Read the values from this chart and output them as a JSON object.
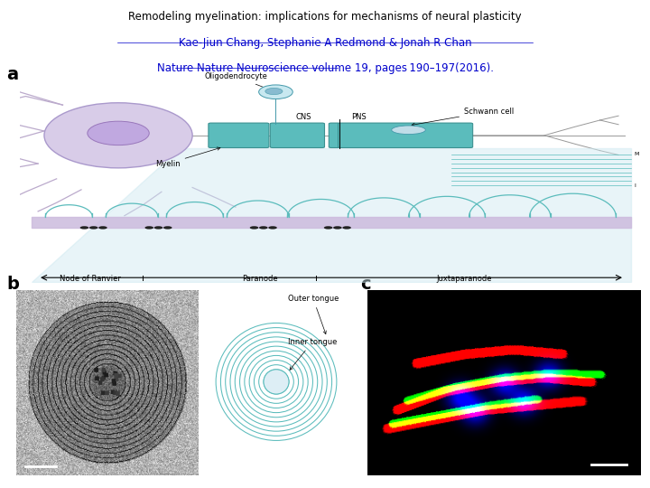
{
  "title_line1": "Remodeling myelination: implications for mechanisms of neural plasticity",
  "title_line2": "Kae-Jiun Chang, Stephanie A Redmond & Jonah R Chan",
  "title_line3": "Nature Nature Neuroscience volume 19, pages 190–197(2016).",
  "title_fontsize": 8.5,
  "bg_color": "#ffffff",
  "teal": "#5bbcbc",
  "teal_dark": "#3a9090",
  "lavender": "#d8cce8",
  "lavender_edge": "#aa99cc",
  "nucleus_color": "#c0a8e0",
  "nucleus_edge": "#9977bb",
  "dendrite_color": "#bbaacc",
  "axon_color": "#999999",
  "trap_fill": "#cce8f0",
  "axon_detail_color": "#ccbbdd",
  "dot_color": "#222222",
  "oligo_fill": "#c8e8f0",
  "oligo_edge": "#4499aa",
  "schwann_fill": "#c0dde8",
  "label_fontsize": 14,
  "region_fontsize": 6,
  "annotation_fontsize": 6
}
